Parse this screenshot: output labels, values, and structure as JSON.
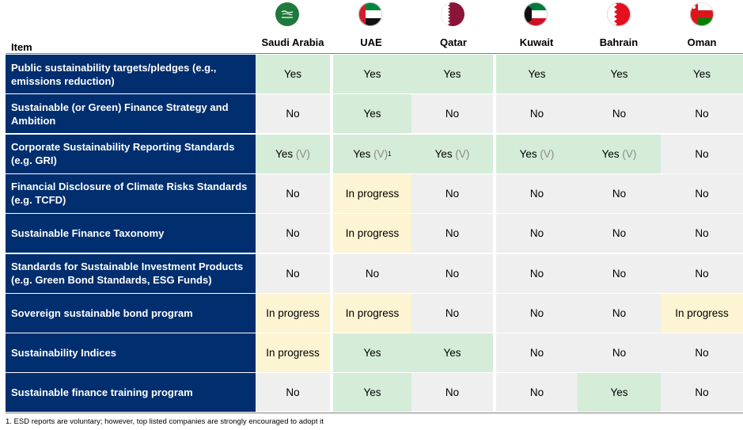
{
  "columns": [
    {
      "name": "Saudi Arabia",
      "flag": "saudi-arabia-flag-icon"
    },
    {
      "name": "UAE",
      "flag": "uae-flag-icon"
    },
    {
      "name": "Qatar",
      "flag": "qatar-flag-icon"
    },
    {
      "name": "Kuwait",
      "flag": "kuwait-flag-icon"
    },
    {
      "name": "Bahrain",
      "flag": "bahrain-flag-icon"
    },
    {
      "name": "Oman",
      "flag": "oman-flag-icon"
    }
  ],
  "item_header": "Item",
  "rows": [
    {
      "label": "Public sustainability targets/pledges (e.g., emissions reduction)",
      "cells": [
        {
          "text": "Yes",
          "status": "yes"
        },
        {
          "text": "Yes",
          "status": "yes"
        },
        {
          "text": "Yes",
          "status": "yes"
        },
        {
          "text": "Yes",
          "status": "yes"
        },
        {
          "text": "Yes",
          "status": "yes"
        },
        {
          "text": "Yes",
          "status": "yes"
        }
      ]
    },
    {
      "label": "Sustainable (or Green) Finance Strategy and Ambition",
      "cells": [
        {
          "text": "No",
          "status": "no"
        },
        {
          "text": "Yes",
          "status": "yes"
        },
        {
          "text": "No",
          "status": "no"
        },
        {
          "text": "No",
          "status": "no"
        },
        {
          "text": "No",
          "status": "no"
        },
        {
          "text": "No",
          "status": "no"
        }
      ]
    },
    {
      "label": "Corporate Sustainability Reporting Standards (e.g. GRI)",
      "cells": [
        {
          "text": "Yes",
          "suffix": "(V)",
          "status": "yes"
        },
        {
          "text": "Yes",
          "suffix": "(V)",
          "sup": "1",
          "status": "yes"
        },
        {
          "text": "Yes",
          "suffix": "(V)",
          "status": "yes"
        },
        {
          "text": "Yes",
          "suffix": "(V)",
          "status": "yes"
        },
        {
          "text": "Yes",
          "suffix": "(V)",
          "status": "yes"
        },
        {
          "text": "No",
          "status": "no"
        }
      ]
    },
    {
      "label": "Financial Disclosure of Climate Risks Standards (e.g. TCFD)",
      "cells": [
        {
          "text": "No",
          "status": "no"
        },
        {
          "text": "In progress",
          "status": "prog"
        },
        {
          "text": "No",
          "status": "no"
        },
        {
          "text": "No",
          "status": "no"
        },
        {
          "text": "No",
          "status": "no"
        },
        {
          "text": "No",
          "status": "no"
        }
      ]
    },
    {
      "label": "Sustainable Finance Taxonomy",
      "cells": [
        {
          "text": "No",
          "status": "no"
        },
        {
          "text": "In progress",
          "status": "prog"
        },
        {
          "text": "No",
          "status": "no"
        },
        {
          "text": "No",
          "status": "no"
        },
        {
          "text": "No",
          "status": "no"
        },
        {
          "text": "No",
          "status": "no"
        }
      ]
    },
    {
      "label": "Standards for Sustainable Investment Products (e.g. Green Bond Standards, ESG Funds)",
      "cells": [
        {
          "text": "No",
          "status": "no"
        },
        {
          "text": "No",
          "status": "no"
        },
        {
          "text": "No",
          "status": "no"
        },
        {
          "text": "No",
          "status": "no"
        },
        {
          "text": "No",
          "status": "no"
        },
        {
          "text": "No",
          "status": "no"
        }
      ]
    },
    {
      "label": "Sovereign sustainable bond program",
      "cells": [
        {
          "text": "In progress",
          "status": "prog"
        },
        {
          "text": "In progress",
          "status": "prog"
        },
        {
          "text": "No",
          "status": "no"
        },
        {
          "text": "No",
          "status": "no"
        },
        {
          "text": "No",
          "status": "no"
        },
        {
          "text": "In progress",
          "status": "prog"
        }
      ]
    },
    {
      "label": "Sustainability Indices",
      "cells": [
        {
          "text": "In progress",
          "status": "prog"
        },
        {
          "text": "Yes",
          "status": "yes"
        },
        {
          "text": "Yes",
          "status": "yes"
        },
        {
          "text": "No",
          "status": "no"
        },
        {
          "text": "No",
          "status": "no"
        },
        {
          "text": "No",
          "status": "no"
        }
      ]
    },
    {
      "label": "Sustainable finance training program",
      "cells": [
        {
          "text": "No",
          "status": "no"
        },
        {
          "text": "Yes",
          "status": "yes"
        },
        {
          "text": "No",
          "status": "no"
        },
        {
          "text": "No",
          "status": "no"
        },
        {
          "text": "Yes",
          "status": "yes"
        },
        {
          "text": "No",
          "status": "no"
        }
      ]
    }
  ],
  "footnote": "1. ESD reports are voluntary; however, top listed companies are strongly encouraged to adopt it",
  "colors": {
    "header_bg": "#002e6e",
    "yes": "#d4ecd8",
    "no": "#efefef",
    "in_progress": "#fcf4d2"
  }
}
